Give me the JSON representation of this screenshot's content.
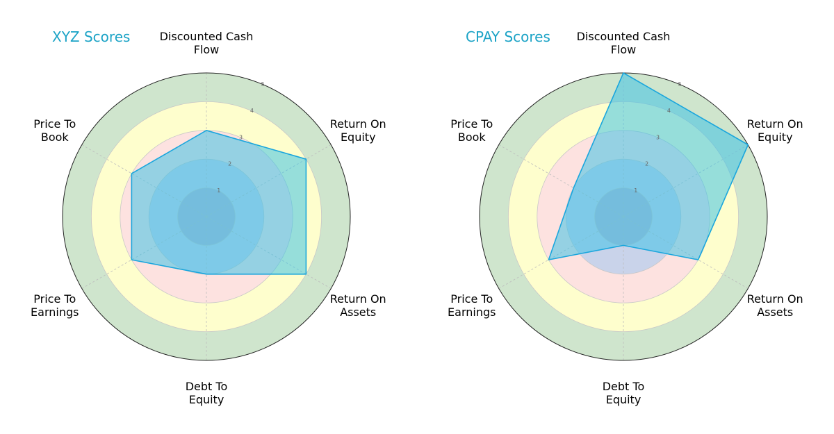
{
  "chart_data": [
    {
      "type": "radar",
      "title": "XYZ Scores",
      "categories": [
        "Discounted Cash Flow",
        "Return On Equity",
        "Return On Assets",
        "Debt To Equity",
        "Price To Earnings",
        "Price To Book"
      ],
      "label_lines": [
        [
          "Discounted Cash",
          "Flow"
        ],
        [
          "Return On",
          "Equity"
        ],
        [
          "Return On",
          "Assets"
        ],
        [
          "Debt To",
          "Equity"
        ],
        [
          "Price To",
          "Earnings"
        ],
        [
          "Price To",
          "Book"
        ]
      ],
      "values": [
        3,
        4,
        4,
        2,
        3,
        3
      ],
      "rlim": [
        0,
        5
      ],
      "rticks": [
        "1",
        "2",
        "3",
        "4",
        "5"
      ],
      "grid": true
    },
    {
      "type": "radar",
      "title": "CPAY Scores",
      "categories": [
        "Discounted Cash Flow",
        "Return On Equity",
        "Return On Assets",
        "Debt To Equity",
        "Price To Earnings",
        "Price To Book"
      ],
      "label_lines": [
        [
          "Discounted Cash",
          "Flow"
        ],
        [
          "Return On",
          "Equity"
        ],
        [
          "Return On",
          "Assets"
        ],
        [
          "Debt To",
          "Equity"
        ],
        [
          "Price To",
          "Earnings"
        ],
        [
          "Price To",
          "Book"
        ]
      ],
      "values": [
        5,
        5,
        3,
        1,
        3,
        2
      ],
      "rlim": [
        0,
        5
      ],
      "rticks": [
        "1",
        "2",
        "3",
        "4",
        "5"
      ],
      "grid": true
    }
  ],
  "colors": {
    "title": "#1ba3c6",
    "fill": "#3fc2e6",
    "stroke": "#1aa6dd",
    "band_1": "#b7b7d2",
    "band_2": "#c9d3ea",
    "band_3": "#fde2e0",
    "band_4": "#fefecd",
    "band_5": "#cfe5cd"
  }
}
